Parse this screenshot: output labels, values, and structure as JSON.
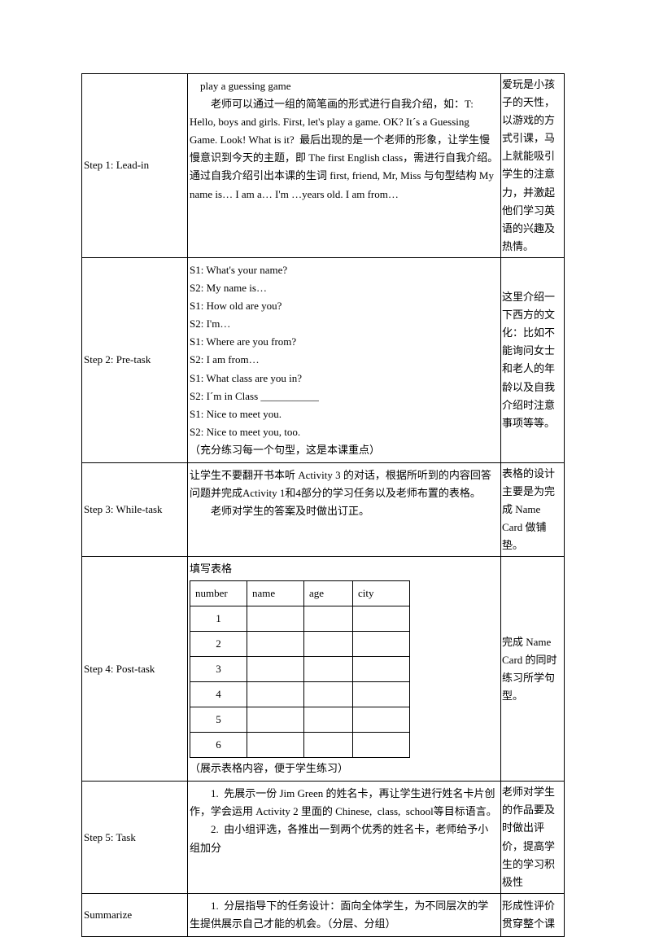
{
  "rows": [
    {
      "step": "Step 1: Lead-in",
      "content": "　play a guessing game\n　　老师可以通过一组的简笔画的形式进行自我介绍，如：T: Hello, boys and girls. First, let's play a game. OK? It´s a Guessing Game. Look! What is it?  最后出现的是一个老师的形象，让学生慢慢意识到今天的主题，即 The first English class，需进行自我介绍。通过自我介绍引出本课的生词 first, friend, Mr, Miss 与句型结构 My name is… I am a… I'm …years old. I am from…",
      "note": "爱玩是小孩子的天性，以游戏的方式引课，马上就能吸引学生的注意力，并激起他们学习英语的兴趣及热情。"
    },
    {
      "step": "Step 2: Pre-task",
      "content": "S1: What's your name?\nS2: My name is…\nS1: How old are you?\nS2: I'm…\nS1: Where are you from?\nS2: I am from…\nS1: What class are you in?\nS2: I´m in Class ___________\nS1: Nice to meet you.\nS2: Nice to meet you, too.\n（充分练习每一个句型，这是本课重点）",
      "note": "这里介绍一下西方的文化：比如不能询问女士和老人的年龄以及自我介绍时注意事项等等。"
    },
    {
      "step": "Step 3: While-task",
      "content": "让学生不要翻开书本听 Activity 3 的对话，根据所听到的内容回答问题并完成Activity 1和4部分的学习任务以及老师布置的表格。\n　　老师对学生的答案及时做出订正。",
      "note": "表格的设计主要是为完成 Name Card 做铺垫。"
    },
    {
      "step": "Step 4: Post-task",
      "content_pre": "填写表格",
      "table_headers": [
        "number",
        "name",
        "age",
        "city"
      ],
      "table_rows": [
        "1",
        "2",
        "3",
        "4",
        "5",
        "6"
      ],
      "content_post": "（展示表格内容，便于学生练习）",
      "note": "完成 Name Card 的同时练习所学句型。"
    },
    {
      "step": "Step 5: Task",
      "content": "　　1.  先展示一份 Jim Green 的姓名卡，再让学生进行姓名卡片创作，学会运用 Activity 2 里面的 Chinese,  class,  school等目标语言。\n　　2.  由小组评选，各推出一到两个优秀的姓名卡，老师给予小组加分",
      "note": "老师对学生的作品要及时做出评价，提高学生的学习积极性"
    },
    {
      "step": "Summarize",
      "content": "　　1.  分层指导下的任务设计：面向全体学生，为不同层次的学生提供展示自己才能的机会。（分层、分组）",
      "note": "形成性评价贯穿整个课"
    }
  ],
  "inner_col_widths": [
    70,
    70,
    60,
    70
  ],
  "colors": {
    "text": "#000000",
    "background": "#ffffff",
    "border": "#000000"
  }
}
